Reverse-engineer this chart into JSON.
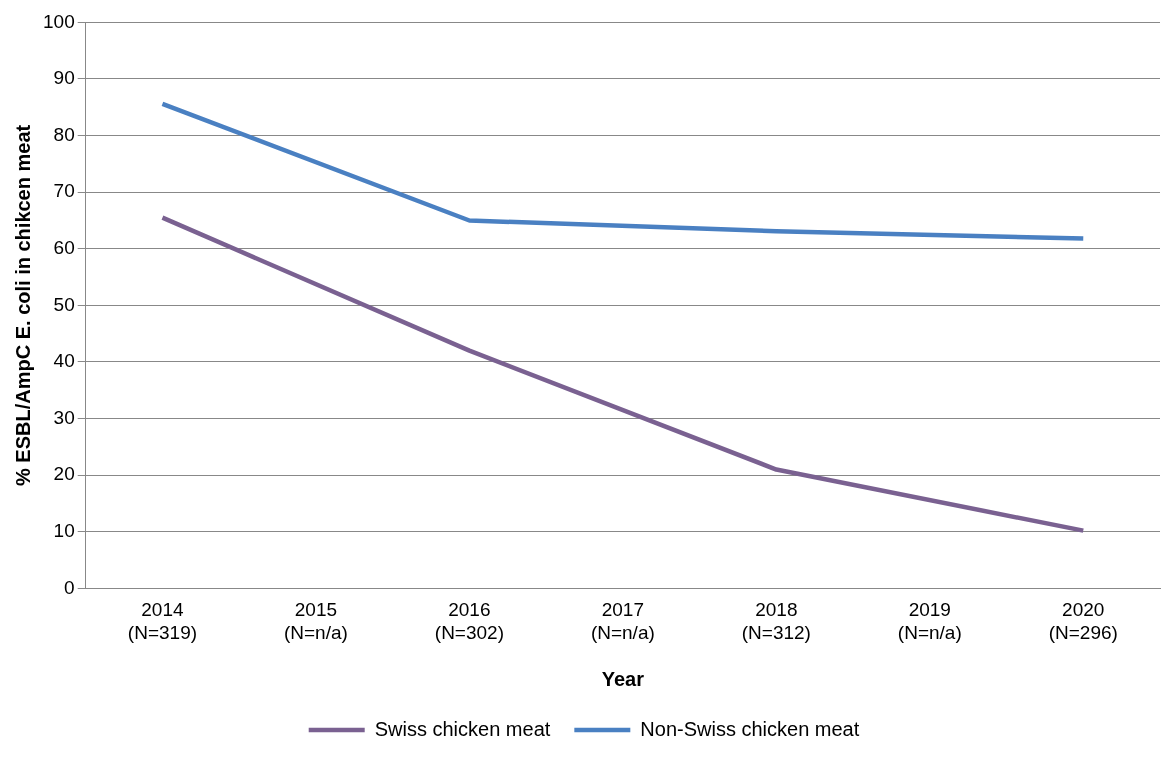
{
  "chart_data": {
    "type": "line",
    "xlabel": "Year",
    "ylabel": "% ESBL/AmpC E. coli in chikcen meat",
    "categories": [
      "2014\n(N=319)",
      "2015\n(N=n/a)",
      "2016\n(N=302)",
      "2017\n(N=n/a)",
      "2018\n(N=312)",
      "2019\n(N=n/a)",
      "2020\n(N=296)"
    ],
    "series": [
      {
        "name": "Swiss chicken meat",
        "color": "#7a6191",
        "values": [
          65.5,
          null,
          42,
          null,
          21,
          null,
          10.2
        ]
      },
      {
        "name": "Non-Swiss chicken meat",
        "color": "#4a80c2",
        "values": [
          85.6,
          null,
          65,
          null,
          63.1,
          null,
          61.8
        ]
      }
    ],
    "ylim": [
      0,
      100
    ],
    "yticks": [
      0,
      10,
      20,
      30,
      40,
      50,
      60,
      70,
      80,
      90,
      100
    ],
    "grid": "y",
    "legend": "bottom",
    "marker": "none",
    "line_style": "solid"
  }
}
